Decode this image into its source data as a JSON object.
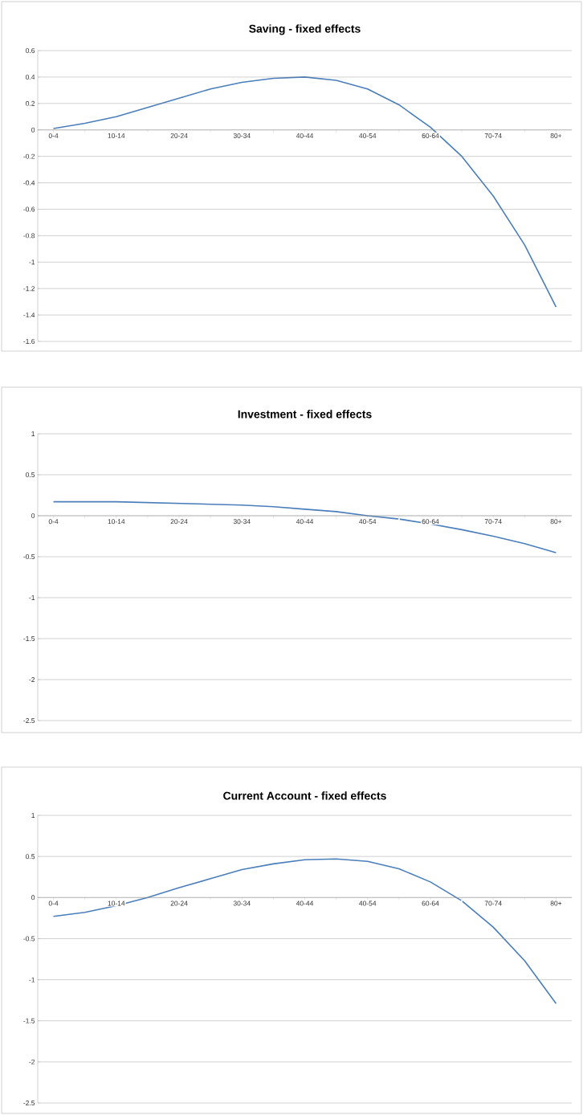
{
  "chart_data": [
    {
      "type": "line",
      "title": "Saving - fixed effects",
      "categories": [
        "0-4",
        null,
        "10-14",
        null,
        "20-24",
        null,
        "30-34",
        null,
        "40-44",
        null,
        "40-54",
        null,
        "60-64",
        null,
        "70-74",
        null,
        "80+"
      ],
      "series": [
        {
          "color": "#4a7ebb",
          "values": [
            0.01,
            0.05,
            0.1,
            0.17,
            0.24,
            0.31,
            0.36,
            0.39,
            0.4,
            0.375,
            0.31,
            0.19,
            0.02,
            -0.2,
            -0.5,
            -0.87,
            -1.34
          ]
        }
      ],
      "ylim": [
        -1.6,
        0.6
      ],
      "yticks": [
        -1.6,
        -1.4,
        -1.2,
        -1,
        -0.8,
        -0.6,
        -0.4,
        -0.2,
        0,
        0.2,
        0.4,
        0.6
      ],
      "grid": "y"
    },
    {
      "type": "line",
      "title": "Investment - fixed effects",
      "categories": [
        "0-4",
        null,
        "10-14",
        null,
        "20-24",
        null,
        "30-34",
        null,
        "40-44",
        null,
        "40-54",
        null,
        "60-64",
        null,
        "70-74",
        null,
        "80+"
      ],
      "series": [
        {
          "color": "#4a7ebb",
          "values": [
            0.17,
            0.17,
            0.17,
            0.16,
            0.15,
            0.14,
            0.13,
            0.11,
            0.08,
            0.05,
            0.0,
            -0.04,
            -0.1,
            -0.17,
            -0.25,
            -0.34,
            -0.45
          ]
        }
      ],
      "ylim": [
        -2.5,
        1
      ],
      "yticks": [
        -2.5,
        -2,
        -1.5,
        -1,
        -0.5,
        0,
        0.5,
        1
      ],
      "grid": "y"
    },
    {
      "type": "line",
      "title": "Current Account - fixed effects",
      "categories": [
        "0-4",
        null,
        "10-14",
        null,
        "20-24",
        null,
        "30-34",
        null,
        "40-44",
        null,
        "40-54",
        null,
        "60-64",
        null,
        "70-74",
        null,
        "80+"
      ],
      "series": [
        {
          "color": "#4a7ebb",
          "values": [
            -0.23,
            -0.18,
            -0.1,
            0.0,
            0.12,
            0.23,
            0.34,
            0.41,
            0.46,
            0.47,
            0.44,
            0.35,
            0.19,
            -0.04,
            -0.36,
            -0.77,
            -1.29
          ]
        }
      ],
      "ylim": [
        -2.5,
        1
      ],
      "yticks": [
        -2.5,
        -2,
        -1.5,
        -1,
        -0.5,
        0,
        0.5,
        1
      ],
      "grid": "y"
    }
  ]
}
